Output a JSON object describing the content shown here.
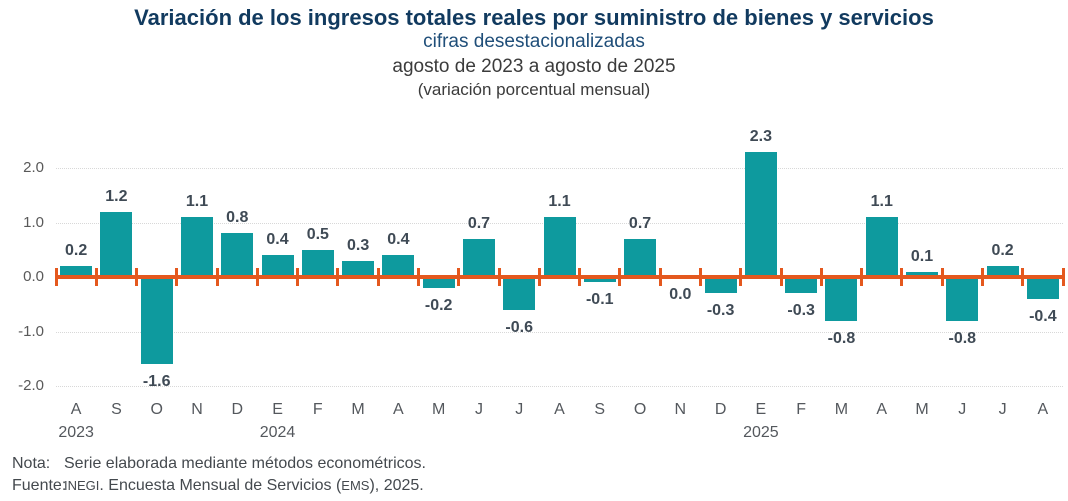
{
  "colors": {
    "bar": "#0E9A9E",
    "zero_line": "#E4581E",
    "title": "#113A5F",
    "subtitle": "#1F4E79",
    "body_text": "#3B3B3B",
    "data_label": "#3F4A55",
    "axis_label": "#54585D",
    "y_tick_label": "#595959",
    "gridline": "#D8D8D8",
    "footer_text": "#44494E"
  },
  "chart_data": {
    "type": "bar",
    "title": "Variación de los ingresos totales reales por suministro de bienes y servicios",
    "subtitle": "cifras desestacionalizadas",
    "period": "agosto de 2023 a agosto de 2025",
    "unit_note": "(variación porcentual mensual)",
    "categories": [
      "A",
      "S",
      "O",
      "N",
      "D",
      "E",
      "F",
      "M",
      "A",
      "M",
      "J",
      "J",
      "A",
      "S",
      "O",
      "N",
      "D",
      "E",
      "F",
      "M",
      "A",
      "M",
      "J",
      "J",
      "A"
    ],
    "values": [
      0.2,
      1.2,
      -1.6,
      1.1,
      0.8,
      0.4,
      0.5,
      0.3,
      0.4,
      -0.2,
      0.7,
      -0.6,
      1.1,
      -0.1,
      0.7,
      0.0,
      -0.3,
      2.3,
      -0.3,
      -0.8,
      1.1,
      0.1,
      -0.8,
      0.2,
      -0.4
    ],
    "year_markers": [
      {
        "index": 0,
        "label": "2023"
      },
      {
        "index": 5,
        "label": "2024"
      },
      {
        "index": 17,
        "label": "2025"
      }
    ],
    "y_ticks": [
      {
        "label": "2.0",
        "value": 2
      },
      {
        "label": "1.0",
        "value": 1
      },
      {
        "label": "0.0",
        "value": 0
      },
      {
        "label": "-1.0",
        "value": -1
      },
      {
        "label": "-2.0",
        "value": -2
      }
    ],
    "gridline_values": [
      2,
      1,
      -1,
      -2
    ],
    "ylim": [
      -2.2,
      2.5
    ],
    "grid": "dotted-horizontal",
    "legend": "none",
    "bar_color": "#0E9A9E",
    "zero_line_color": "#E4581E"
  },
  "footer": {
    "note_label": "Nota:",
    "note_text": "Serie elaborada mediante métodos econométricos.",
    "source_label": "Fuente:",
    "source_segments": [
      {
        "text": "INEGI",
        "smallcaps": true
      },
      {
        "text": ". Encuesta Mensual de Servicios (",
        "smallcaps": false
      },
      {
        "text": "EMS",
        "smallcaps": true
      },
      {
        "text": "), 2025.",
        "smallcaps": false
      }
    ]
  }
}
